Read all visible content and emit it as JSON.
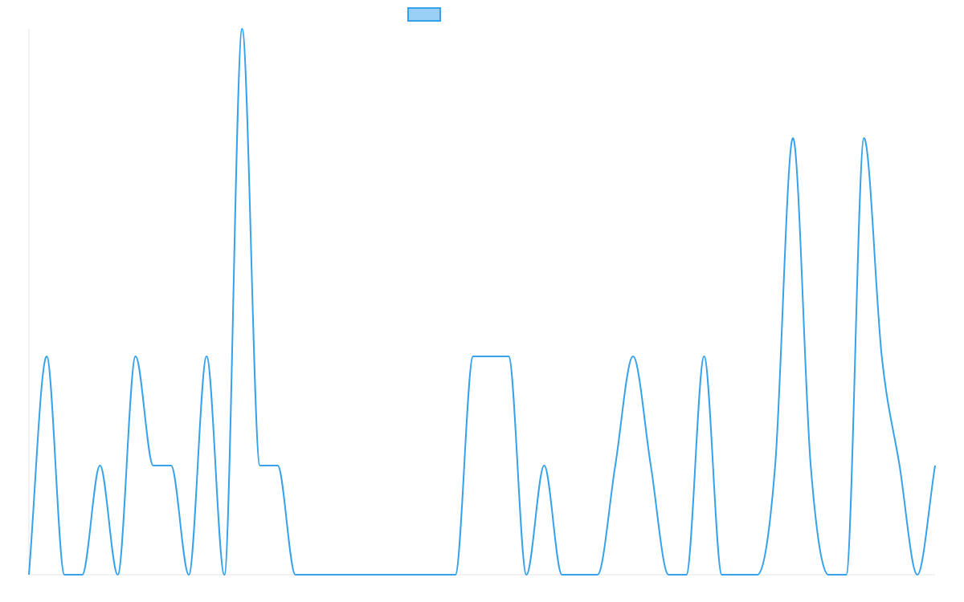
{
  "chart_data": {
    "type": "line",
    "title": "",
    "xlabel": "",
    "ylabel": "",
    "legend": {
      "position": "top-center",
      "items": [
        {
          "label": "",
          "color": "#36a2eb",
          "fill": "#9ad0f5"
        }
      ]
    },
    "grid": false,
    "xlim": [
      0,
      51
    ],
    "ylim": [
      0,
      5
    ],
    "series": [
      {
        "name": "",
        "color": "#36a2eb",
        "values": [
          0,
          2,
          0,
          0,
          1,
          0,
          2,
          1,
          1,
          0,
          2,
          0,
          5,
          1,
          1,
          0,
          0,
          0,
          0,
          0,
          0,
          0,
          0,
          0,
          0,
          2,
          2,
          2,
          0,
          1,
          0,
          0,
          0,
          1,
          2,
          1,
          0,
          0,
          2,
          0,
          0,
          0,
          1,
          4,
          1,
          0,
          0,
          4,
          2,
          1,
          0,
          1
        ]
      }
    ]
  }
}
